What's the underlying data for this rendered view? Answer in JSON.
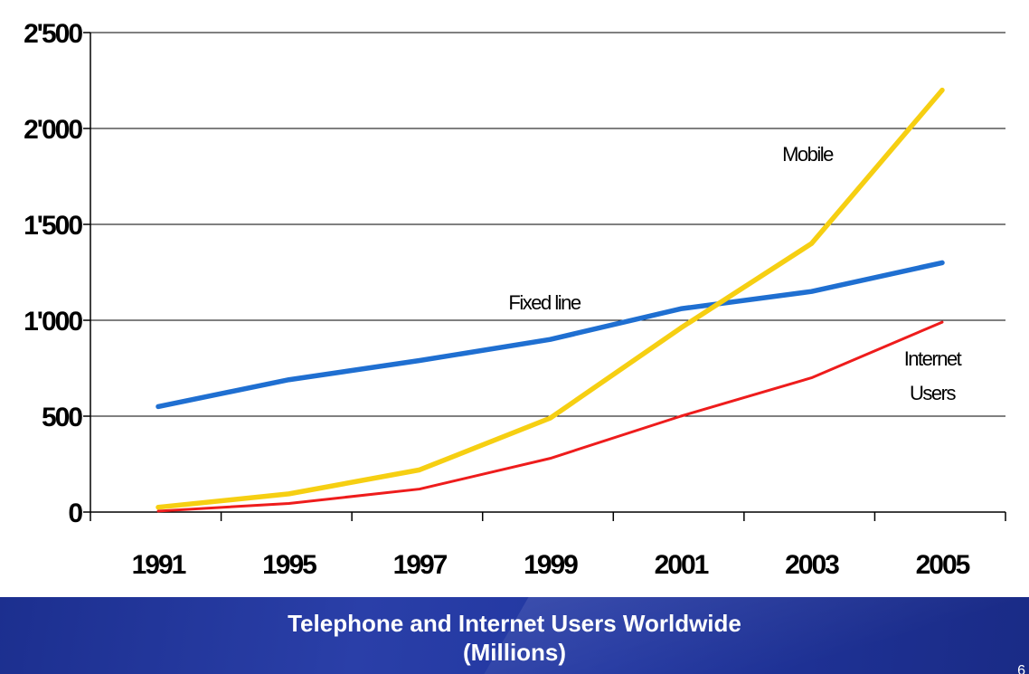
{
  "chart_data": {
    "type": "line",
    "categories": [
      "1991",
      "1995",
      "1997",
      "1999",
      "2001",
      "2003",
      "2005"
    ],
    "series": [
      {
        "name": "Fixed line",
        "color": "#1f6fd1",
        "values": [
          550,
          690,
          790,
          900,
          1060,
          1150,
          1300
        ]
      },
      {
        "name": "Mobile",
        "color": "#f6cf12",
        "values": [
          25,
          95,
          220,
          490,
          960,
          1400,
          2200
        ]
      },
      {
        "name": "Internet Users",
        "label_lines": [
          "Internet",
          "Users"
        ],
        "color": "#ee1c1c",
        "values": [
          5,
          45,
          120,
          280,
          500,
          700,
          990
        ]
      }
    ],
    "y_ticks": [
      "0",
      "500",
      "1'000",
      "1'500",
      "2'000",
      "2'500"
    ],
    "y_tick_values": [
      0,
      500,
      1000,
      1500,
      2000,
      2500
    ],
    "ylim": [
      0,
      2500
    ],
    "grid": true,
    "title": "Telephone and Internet Users Worldwide",
    "subtitle": "(Millions)",
    "slide_number": "6"
  }
}
